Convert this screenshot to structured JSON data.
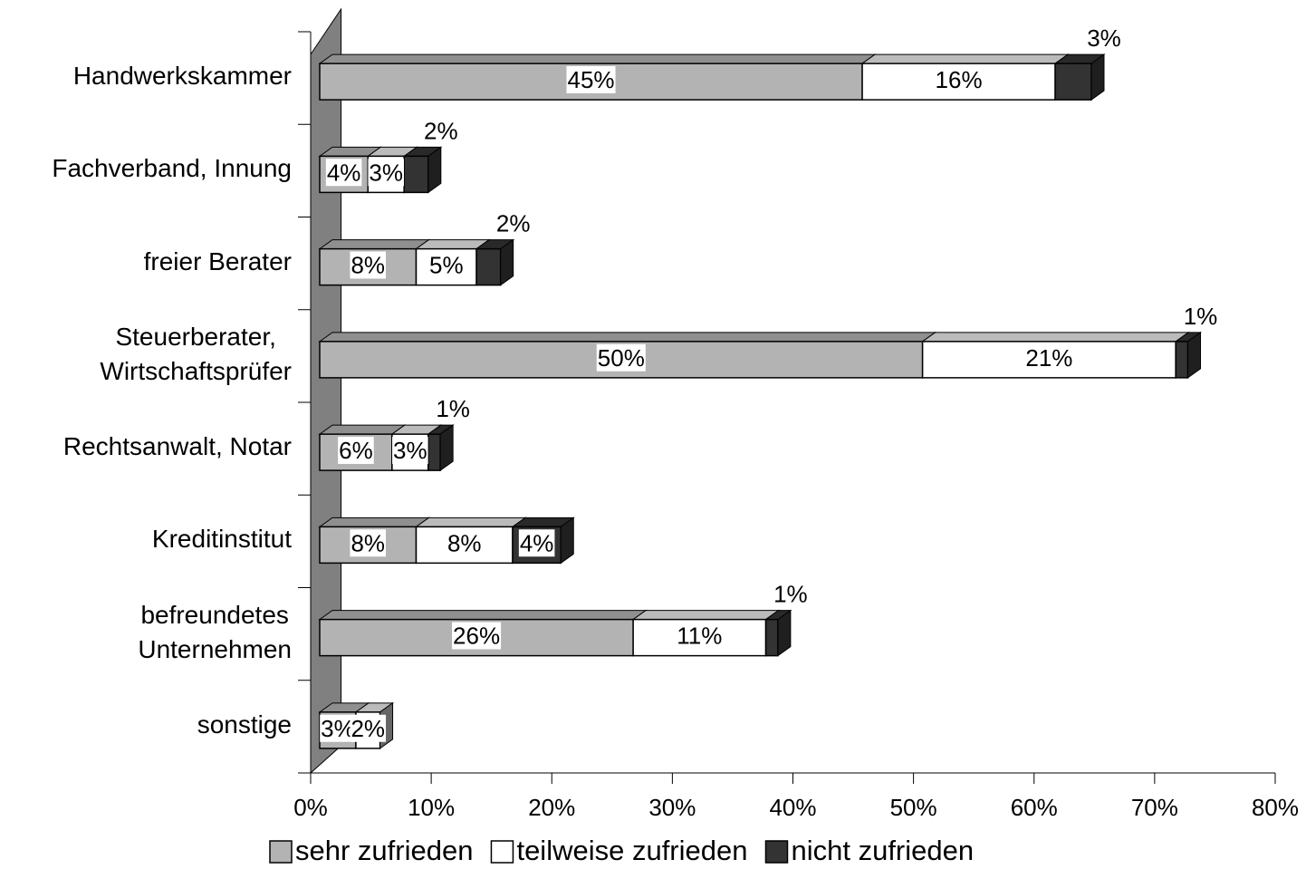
{
  "chart_data": {
    "type": "bar3d_stacked_horizontal",
    "categories": [
      "Handwerkskammer",
      "Fachverband, Innung",
      "freier Berater",
      "Steuerberater,\nWirtschaftsprüfer",
      "Rechtsanwalt, Notar",
      "Kreditinstitut",
      "befreundetes\nUnternehmen",
      "sonstige"
    ],
    "series": [
      {
        "name": "sehr zufrieden",
        "color": "#b3b3b3",
        "values": [
          45,
          4,
          8,
          50,
          6,
          8,
          26,
          3
        ],
        "value_labels": [
          "45%",
          "4%",
          "8%",
          "50%",
          "6%",
          "8%",
          "26%",
          "3%"
        ]
      },
      {
        "name": "teilweise zufrieden",
        "color": "#ffffff",
        "values": [
          16,
          3,
          5,
          21,
          3,
          8,
          11,
          2
        ],
        "value_labels": [
          "16%",
          "3%",
          "5%",
          "21%",
          "3%",
          "8%",
          "11%",
          "2%"
        ]
      },
      {
        "name": "nicht zufrieden",
        "color": "#333333",
        "values": [
          3,
          2,
          2,
          1,
          1,
          4,
          1,
          0
        ],
        "value_labels": [
          "3%",
          "2%",
          "2%",
          "1%",
          "1%",
          "4%",
          "1%",
          null
        ]
      }
    ],
    "xlim": [
      0,
      80
    ],
    "xticks": [
      {
        "value": 0,
        "label": "0%"
      },
      {
        "value": 10,
        "label": "10%"
      },
      {
        "value": 20,
        "label": "20%"
      },
      {
        "value": 30,
        "label": "30%"
      },
      {
        "value": 40,
        "label": "40%"
      },
      {
        "value": 50,
        "label": "50%"
      },
      {
        "value": 60,
        "label": "60%"
      },
      {
        "value": 70,
        "label": "70%"
      },
      {
        "value": 80,
        "label": "80%"
      }
    ],
    "legend": "bottom"
  }
}
